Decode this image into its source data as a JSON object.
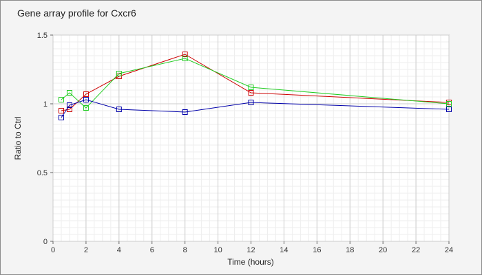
{
  "chart_data": {
    "type": "line",
    "title": "Gene array profile for Cxcr6",
    "xlabel": "Time (hours)",
    "ylabel": "Ratio to Ctrl",
    "xlim": [
      0,
      24
    ],
    "ylim": [
      0,
      1.5
    ],
    "x_ticks": [
      0,
      2,
      4,
      6,
      8,
      10,
      12,
      14,
      16,
      18,
      20,
      22,
      24
    ],
    "y_ticks": [
      0,
      0.5,
      1,
      1.5
    ],
    "y_tick_labels": [
      "0",
      "0.5",
      "1",
      "1.5"
    ],
    "grid": true,
    "marker": "open-square",
    "series": [
      {
        "color": "#cc0000",
        "x": [
          0.5,
          1,
          2,
          4,
          8,
          12,
          24
        ],
        "y": [
          0.95,
          0.96,
          1.07,
          1.2,
          1.36,
          1.08,
          1.01
        ]
      },
      {
        "color": "#22cc22",
        "x": [
          0.5,
          1,
          2,
          4,
          8,
          12,
          24
        ],
        "y": [
          1.03,
          1.08,
          0.97,
          1.22,
          1.33,
          1.12,
          1.0
        ]
      },
      {
        "color": "#0000aa",
        "x": [
          0.5,
          1,
          2,
          4,
          8,
          12,
          24
        ],
        "y": [
          0.9,
          0.99,
          1.03,
          0.96,
          0.94,
          1.01,
          0.96
        ]
      }
    ]
  }
}
